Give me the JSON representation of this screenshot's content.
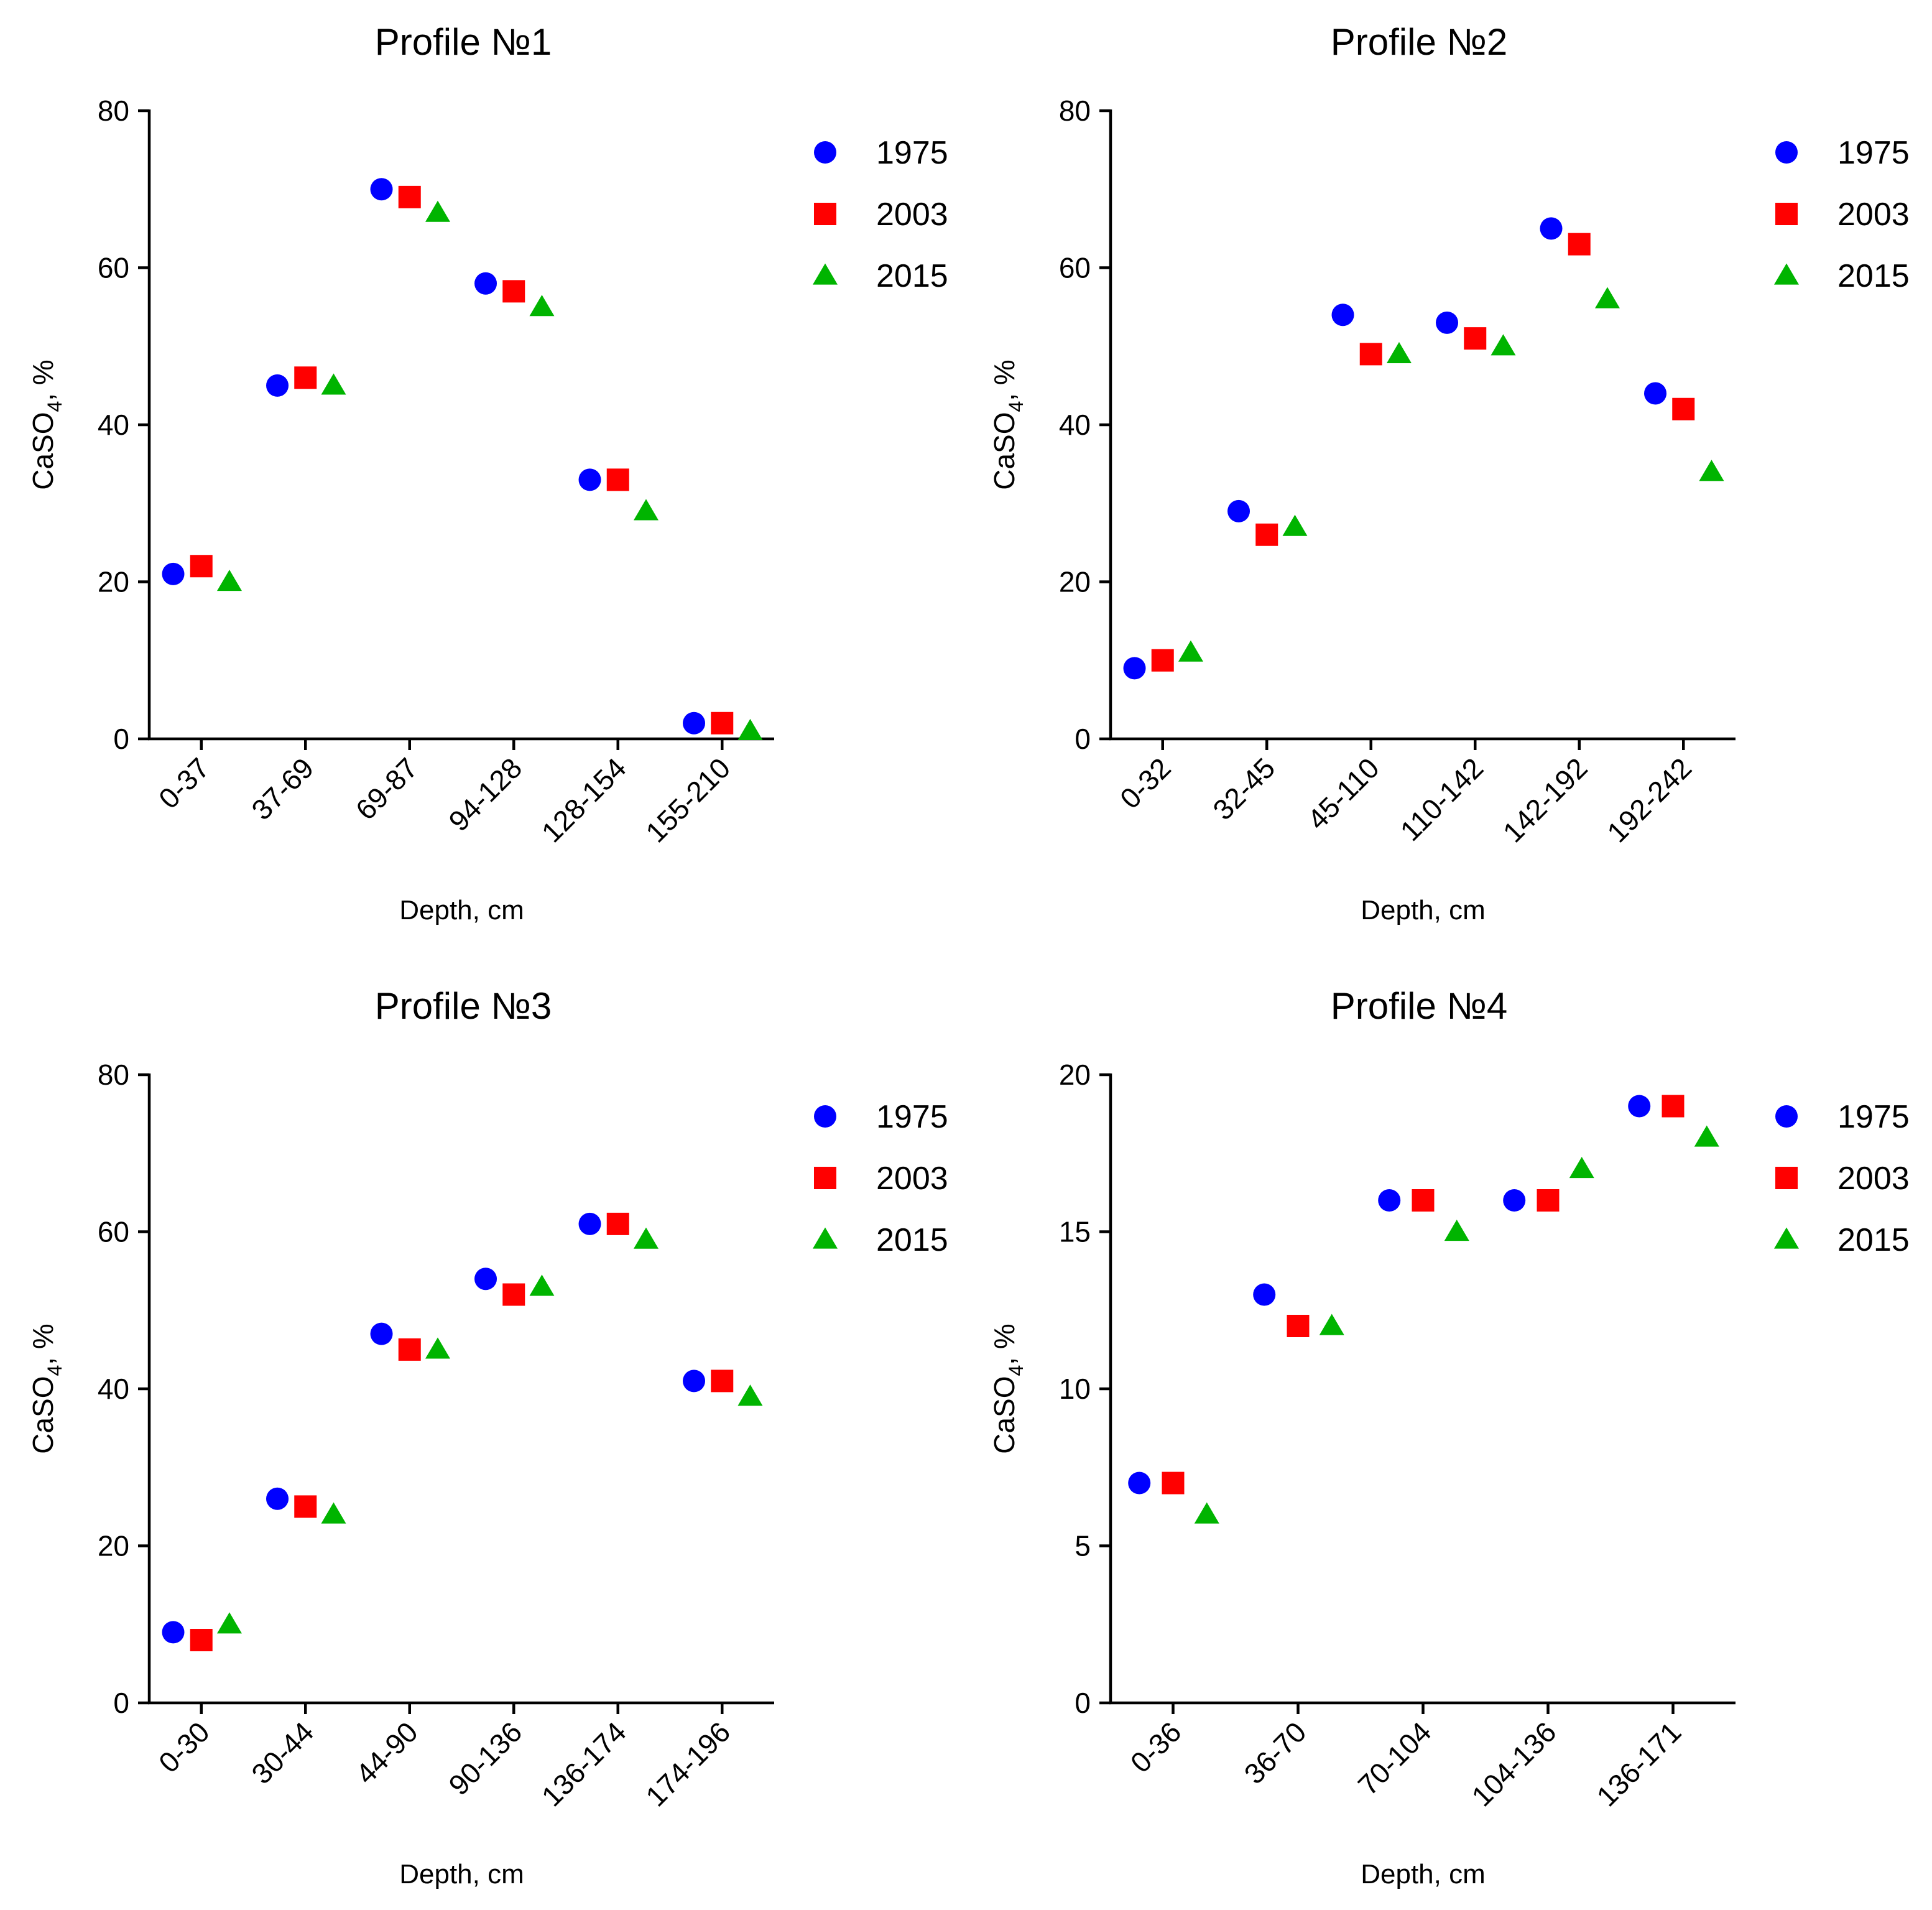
{
  "colors": {
    "1975": "#0000ff",
    "2003": "#ff0000",
    "2015": "#00b400"
  },
  "chart_data": [
    {
      "type": "scatter",
      "title": "Profile №1",
      "xlabel": "Depth, cm",
      "ylabel_main": "CaSO",
      "ylabel_sub": "4",
      "ylabel_tail": ", %",
      "categories": [
        "0-37",
        "37-69",
        "69-87",
        "94-128",
        "128-154",
        "155-210"
      ],
      "ylim": [
        0,
        80
      ],
      "yticks": [
        0,
        20,
        40,
        60,
        80
      ],
      "series": [
        {
          "name": "1975",
          "marker": "circle",
          "values": [
            21,
            45,
            70,
            58,
            33,
            2
          ]
        },
        {
          "name": "2003",
          "marker": "square",
          "values": [
            22,
            46,
            69,
            57,
            33,
            2
          ]
        },
        {
          "name": "2015",
          "marker": "triangle",
          "values": [
            20,
            45,
            67,
            55,
            29,
            1
          ]
        }
      ],
      "legend": "top-right"
    },
    {
      "type": "scatter",
      "title": "Profile №2",
      "xlabel": "Depth, cm",
      "ylabel_main": "CaSO",
      "ylabel_sub": "4",
      "ylabel_tail": ", %",
      "categories": [
        "0-32",
        "32-45",
        "45-110",
        "110-142",
        "142-192",
        "192-242"
      ],
      "ylim": [
        0,
        80
      ],
      "yticks": [
        0,
        20,
        40,
        60,
        80
      ],
      "series": [
        {
          "name": "1975",
          "marker": "circle",
          "values": [
            9,
            29,
            54,
            53,
            65,
            44
          ]
        },
        {
          "name": "2003",
          "marker": "square",
          "values": [
            10,
            26,
            49,
            51,
            63,
            42
          ]
        },
        {
          "name": "2015",
          "marker": "triangle",
          "values": [
            11,
            27,
            49,
            50,
            56,
            34
          ]
        }
      ],
      "legend": "top-right"
    },
    {
      "type": "scatter",
      "title": "Profile №3",
      "xlabel": "Depth, cm",
      "ylabel_main": "CaSO",
      "ylabel_sub": "4",
      "ylabel_tail": ", %",
      "categories": [
        "0-30",
        "30-44",
        "44-90",
        "90-136",
        "136-174",
        "174-196"
      ],
      "ylim": [
        0,
        80
      ],
      "yticks": [
        0,
        20,
        40,
        60,
        80
      ],
      "series": [
        {
          "name": "1975",
          "marker": "circle",
          "values": [
            9,
            26,
            47,
            54,
            61,
            41
          ]
        },
        {
          "name": "2003",
          "marker": "square",
          "values": [
            8,
            25,
            45,
            52,
            61,
            41
          ]
        },
        {
          "name": "2015",
          "marker": "triangle",
          "values": [
            10,
            24,
            45,
            53,
            59,
            39
          ]
        }
      ],
      "legend": "top-right"
    },
    {
      "type": "scatter",
      "title": "Profile №4",
      "xlabel": "Depth, cm",
      "ylabel_main": "CaSO",
      "ylabel_sub": "4",
      "ylabel_tail": ", %",
      "categories": [
        "0-36",
        "36-70",
        "70-104",
        "104-136",
        "136-171"
      ],
      "ylim": [
        0,
        20
      ],
      "yticks": [
        0,
        5,
        10,
        15,
        20
      ],
      "series": [
        {
          "name": "1975",
          "marker": "circle",
          "values": [
            7,
            13,
            16,
            16,
            19
          ]
        },
        {
          "name": "2003",
          "marker": "square",
          "values": [
            7,
            12,
            16,
            16,
            19
          ]
        },
        {
          "name": "2015",
          "marker": "triangle",
          "values": [
            6,
            12,
            15,
            17,
            18
          ]
        }
      ],
      "legend": "top-right"
    }
  ]
}
